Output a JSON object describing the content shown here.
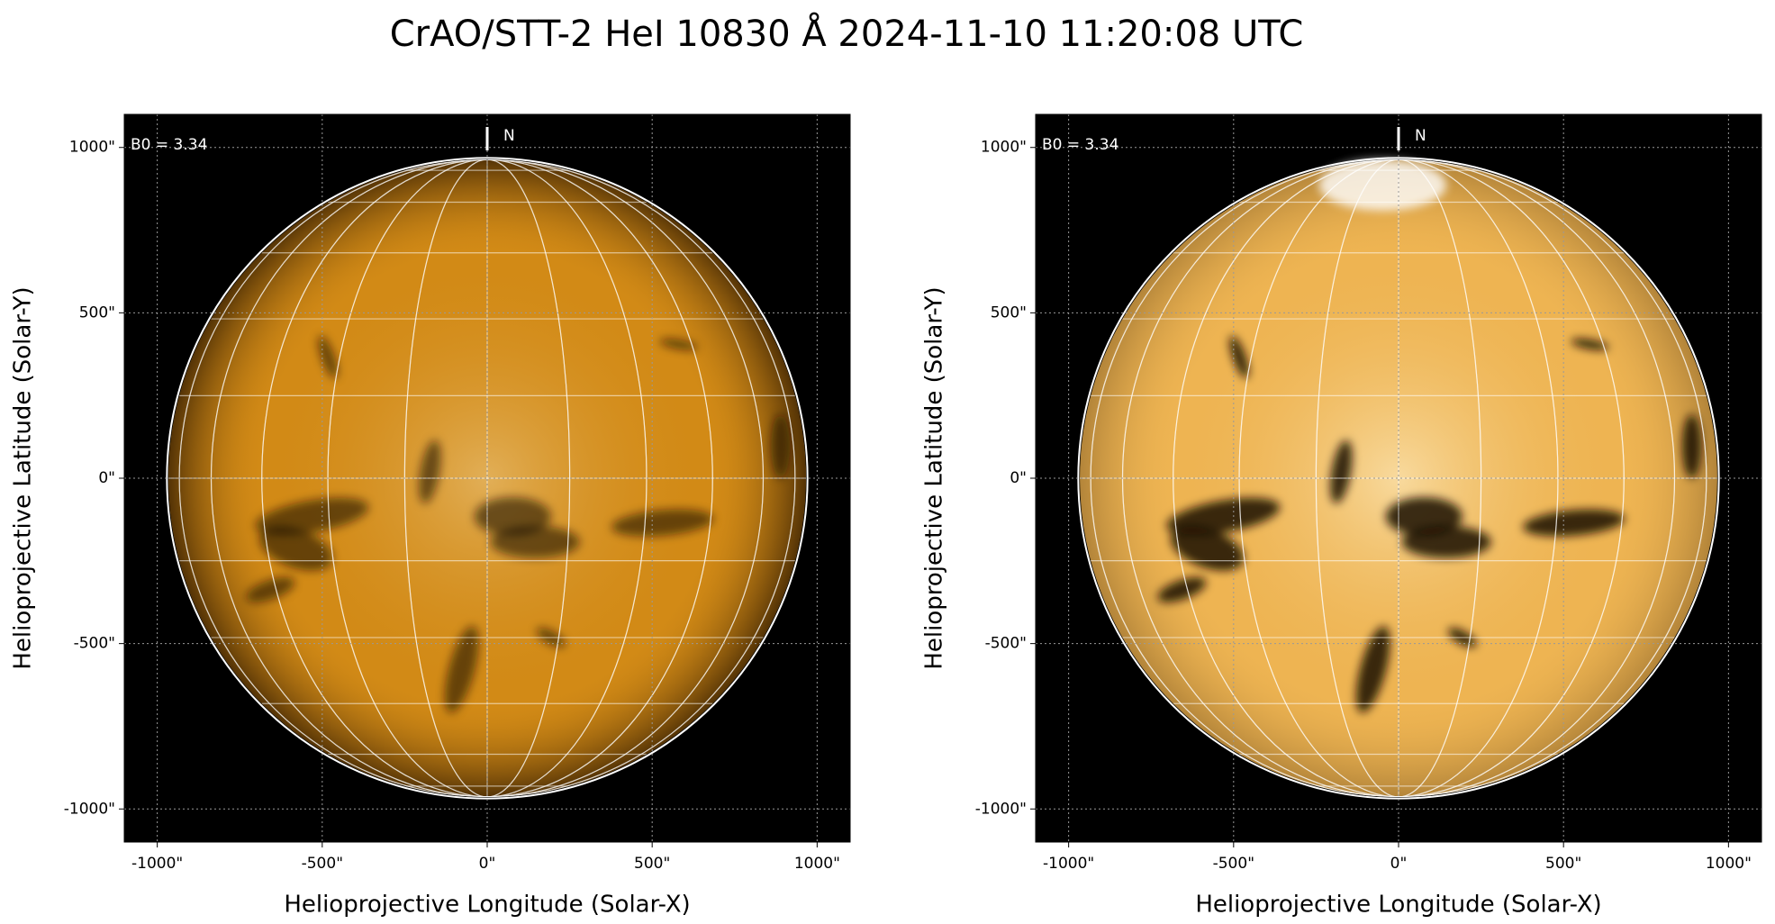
{
  "title": "CrAO/STT-2 HeI 10830 Å 2024-11-10 11:20:08 UTC",
  "chart_data": [
    {
      "type": "image",
      "color": "#d28a16",
      "xlabel": "Helioprojective Longitude (Solar-X)",
      "ylabel": "Helioprojective Latitude (Solar-Y)",
      "xlim": [
        -1100,
        1100
      ],
      "ylim": [
        -1100,
        1100
      ],
      "xticks": [
        {
          "value": -1000,
          "label": "-1000\""
        },
        {
          "value": -500,
          "label": "-500\""
        },
        {
          "value": 0,
          "label": "0\""
        },
        {
          "value": 500,
          "label": "500\""
        },
        {
          "value": 1000,
          "label": "1000\""
        }
      ],
      "yticks": [
        {
          "value": -1000,
          "label": "-1000\""
        },
        {
          "value": -500,
          "label": "-500\""
        },
        {
          "value": 0,
          "label": "0\""
        },
        {
          "value": 500,
          "label": "500\""
        },
        {
          "value": 1000,
          "label": "1000\""
        }
      ],
      "annotations": [
        "B0 = 3.34",
        "N"
      ],
      "grid": true
    },
    {
      "type": "image",
      "color": "#eeb452",
      "xlabel": "Helioprojective Longitude (Solar-X)",
      "ylabel": "Helioprojective Latitude (Solar-Y)",
      "xlim": [
        -1100,
        1100
      ],
      "ylim": [
        -1100,
        1100
      ],
      "xticks": [
        {
          "value": -1000,
          "label": "-1000\""
        },
        {
          "value": -500,
          "label": "-500\""
        },
        {
          "value": 0,
          "label": "0\""
        },
        {
          "value": 500,
          "label": "500\""
        },
        {
          "value": 1000,
          "label": "1000\""
        }
      ],
      "yticks": [
        {
          "value": -1000,
          "label": "-1000\""
        },
        {
          "value": -500,
          "label": "-500\""
        },
        {
          "value": 0,
          "label": "0\""
        },
        {
          "value": 500,
          "label": "500\""
        },
        {
          "value": 1000,
          "label": "1000\""
        }
      ],
      "annotations": [
        "B0 = 3.34",
        "N"
      ],
      "grid": true
    }
  ]
}
